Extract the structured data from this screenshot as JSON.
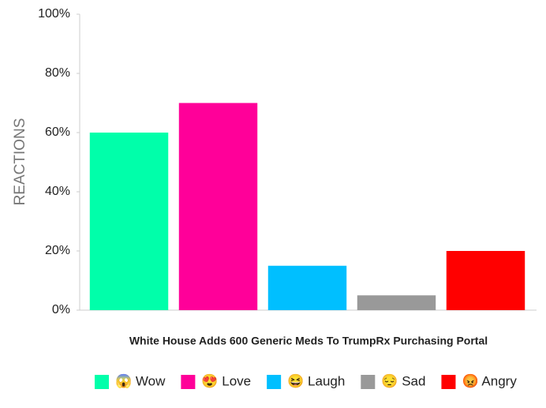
{
  "chart_data": {
    "type": "bar",
    "x_label": "White House Adds 600 Generic Meds To TrumpRx Purchasing Portal",
    "y_label": "REACTIONS",
    "categories": [
      "😱 Wow",
      "😍 Love",
      "😆 Laugh",
      "😔 Sad",
      "😡 Angry"
    ],
    "values": [
      60,
      70,
      15,
      5,
      20
    ],
    "colors": [
      "#00ffaa",
      "#ff0099",
      "#00bfff",
      "#999999",
      "#ff0000"
    ],
    "ylim": [
      0,
      100
    ],
    "yticks": [
      {
        "value": 0,
        "label": "0%"
      },
      {
        "value": 20,
        "label": "20%"
      },
      {
        "value": 40,
        "label": "40%"
      },
      {
        "value": 60,
        "label": "60%"
      },
      {
        "value": 80,
        "label": "80%"
      },
      {
        "value": 100,
        "label": "100%"
      }
    ],
    "legend": "bottom"
  }
}
